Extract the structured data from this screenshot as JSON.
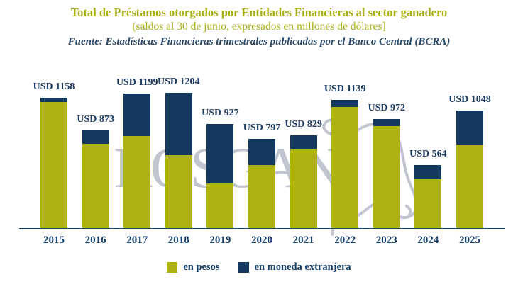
{
  "header": {
    "title": "Total de Préstamos otorgados por Entidades Financieras al sector ganadero",
    "subtitle": "(saldos al 30 de junio, expresados en millones de dólares]",
    "source": "Fuente: Estadísticas Financieras trimestrales publicadas por el Banco Central (BCRA)"
  },
  "watermark": {
    "text": "ROSGAN"
  },
  "colors": {
    "olive": "#aeb212",
    "navy": "#14395e",
    "title_olive": "#a9af15",
    "text_navy": "#1d3c63",
    "axis": "#23435f",
    "watermark_gray": "#8e96ab"
  },
  "legend": [
    {
      "label": "en pesos",
      "color": "#aeb212"
    },
    {
      "label": "en moneda extranjera",
      "color": "#14395e"
    }
  ],
  "chart_data": {
    "type": "bar",
    "stacked": true,
    "title": "Total de Préstamos otorgados por Entidades Financieras al sector ganadero",
    "subtitle": "(saldos al 30 de junio, expresados en millones de dólares]",
    "xlabel": "",
    "ylabel": "",
    "unit": "USD millones",
    "legend_position": "bottom",
    "grid": false,
    "y_axis_shown": false,
    "categories": [
      "2015",
      "2016",
      "2017",
      "2018",
      "2019",
      "2020",
      "2021",
      "2022",
      "2023",
      "2024",
      "2025"
    ],
    "series": [
      {
        "name": "en pesos",
        "color": "#aeb212",
        "values": [
          1120,
          753,
          817,
          652,
          395,
          559,
          697,
          1076,
          909,
          432,
          741
        ]
      },
      {
        "name": "en moneda extranjera",
        "color": "#14395e",
        "values": [
          38,
          120,
          382,
          552,
          532,
          238,
          132,
          63,
          63,
          132,
          307
        ]
      }
    ],
    "totals": [
      1158,
      873,
      1199,
      1204,
      927,
      797,
      829,
      1139,
      972,
      564,
      1048
    ],
    "total_label_format": "USD {value}"
  }
}
